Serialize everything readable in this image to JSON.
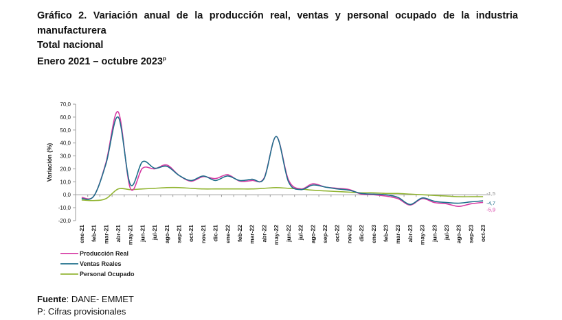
{
  "header": {
    "title": "Gráfico 2. Variación anual de la producción real, ventas y personal ocupado de la industria manufacturera",
    "line2": "Total nacional",
    "line3": "Enero 2021 – octubre 2023",
    "line3_sup": "p"
  },
  "footer": {
    "source_label": "Fuente",
    "source_text": ": DANE- EMMET",
    "note": "P: Cifras provisionales"
  },
  "chart_data": {
    "type": "line",
    "title": "",
    "xlabel": "",
    "ylabel": "Variación (%)",
    "ylim": [
      -20,
      70
    ],
    "yticks": [
      -20,
      -10,
      0,
      10,
      20,
      30,
      40,
      50,
      60,
      70
    ],
    "ytick_labels": [
      "-20,0",
      "-10,0",
      "0,0",
      "10,0",
      "20,0",
      "30,0",
      "40,0",
      "50,0",
      "60,0",
      "70,0"
    ],
    "grid": false,
    "legend_position": "bottom-left",
    "categories": [
      "ene-21",
      "feb-21",
      "mar-21",
      "abr-21",
      "may-21",
      "jun-21",
      "jul-21",
      "ago-21",
      "sep-21",
      "oct-21",
      "nov-21",
      "dic-21",
      "ene-22",
      "feb-22",
      "mar-22",
      "abr-22",
      "may-22",
      "jun-22",
      "jul-22",
      "ago-22",
      "sep-22",
      "oct-22",
      "nov-22",
      "dic-22",
      "ene-23",
      "feb-23",
      "mar-23",
      "abr-23",
      "may-23",
      "jun-23",
      "jul-23",
      "ago-23",
      "sep-23",
      "oct-23"
    ],
    "xtick_labels": [
      "ene-21",
      "feb-21",
      "mar-21",
      "abr-21",
      "may-21",
      "jun-21",
      "jul-21",
      "ago-21",
      "sep-21",
      "oct-21",
      "nov-21",
      "dic-21",
      "ene-22",
      "feb-22",
      "mar-22",
      "abr-22",
      "may-22",
      "jun-22",
      "jul-22",
      "ago-22",
      "sep-22",
      "oct-22",
      "nov-22",
      "dic-22",
      "ene-23",
      "feb-23",
      "mar-23",
      "abr-23",
      "may-23",
      "jun-23",
      "jul-23",
      "ago-23",
      "sep-23",
      "oct-23"
    ],
    "series": [
      {
        "name": "Producción Real",
        "color": "#d63ca4",
        "values": [
          -2.0,
          -1.0,
          25.0,
          64.0,
          5.0,
          20.5,
          20.0,
          23.0,
          15.0,
          10.5,
          14.0,
          12.5,
          15.5,
          10.5,
          11.0,
          13.0,
          45.0,
          11.5,
          4.5,
          8.5,
          6.0,
          5.0,
          4.0,
          0.5,
          0.0,
          -1.0,
          -3.0,
          -8.0,
          -3.0,
          -6.0,
          -7.0,
          -9.0,
          -7.0,
          -5.9
        ],
        "end_label": "-5,9",
        "end_label_color": "#d63ca4"
      },
      {
        "name": "Ventas Reales",
        "color": "#1f6f8b",
        "values": [
          -3.0,
          -1.0,
          24.0,
          60.0,
          8.0,
          25.5,
          20.5,
          22.0,
          15.0,
          11.0,
          14.5,
          11.0,
          14.5,
          11.0,
          12.0,
          12.5,
          45.0,
          10.0,
          4.0,
          7.5,
          6.0,
          4.5,
          3.5,
          1.0,
          0.5,
          0.0,
          -2.0,
          -7.5,
          -2.5,
          -5.0,
          -6.0,
          -6.5,
          -5.5,
          -4.7
        ],
        "end_label": "-4,7",
        "end_label_color": "#1f6f8b"
      },
      {
        "name": "Personal Ocupado",
        "color": "#92b533",
        "values": [
          -4.0,
          -4.5,
          -3.0,
          4.5,
          4.0,
          4.5,
          5.0,
          5.5,
          5.5,
          5.0,
          4.5,
          4.5,
          4.5,
          4.5,
          4.5,
          5.0,
          5.5,
          5.0,
          4.5,
          3.5,
          3.0,
          2.5,
          2.0,
          1.5,
          1.5,
          1.0,
          1.0,
          0.5,
          0.0,
          -0.5,
          -1.0,
          -1.5,
          -1.5,
          -1.5
        ],
        "end_label": "-1,5",
        "end_label_color": "#8a8a8a"
      }
    ]
  }
}
